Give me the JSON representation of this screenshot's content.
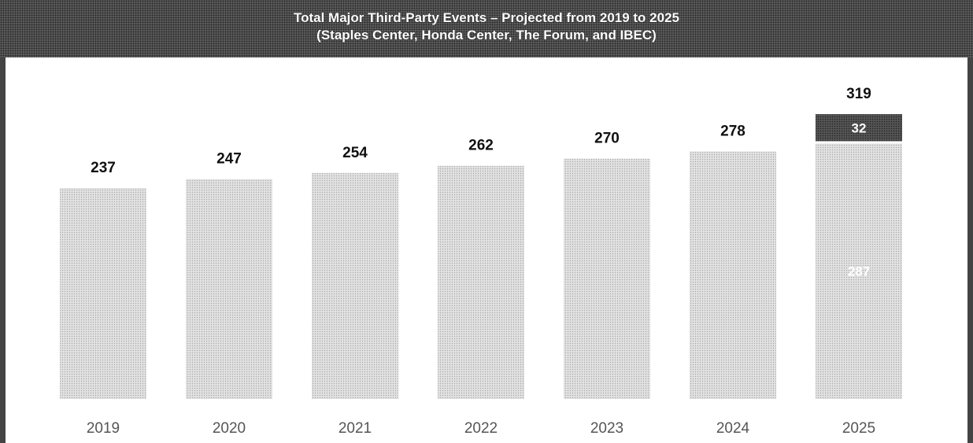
{
  "chart_data": {
    "type": "bar",
    "title": "Total Major Third-Party Events – Projected from 2019 to 2025",
    "subtitle": "(Staples Center, Honda Center, The Forum, and IBEC)",
    "categories": [
      "2019",
      "2020",
      "2021",
      "2022",
      "2023",
      "2024",
      "2025"
    ],
    "series": [
      {
        "values": [
          237,
          247,
          254,
          262,
          270,
          278,
          287
        ]
      },
      {
        "values": [
          0,
          0,
          0,
          0,
          0,
          0,
          32
        ]
      }
    ],
    "totals": [
      237,
      247,
      254,
      262,
      270,
      278,
      319
    ],
    "segment_labels": {
      "2025": [
        "287",
        "32"
      ]
    },
    "stacked": true,
    "ylim": [
      0,
      330
    ],
    "grid": false,
    "legend": "none",
    "xlabel": "",
    "ylabel": "",
    "colors": {
      "base": "#d4d4d4",
      "increment": "#3c3c3c",
      "title_bg": "#5a5a5a"
    }
  }
}
